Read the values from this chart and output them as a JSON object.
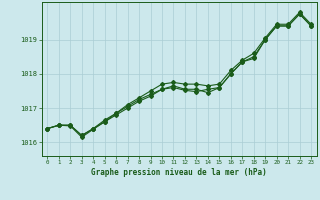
{
  "xlabel": "Graphe pression niveau de la mer (hPa)",
  "background_color": "#cce8ec",
  "grid_color": "#aacdd4",
  "line_color": "#1a5c1a",
  "xlim": [
    -0.5,
    23.5
  ],
  "ylim": [
    1015.6,
    1020.1
  ],
  "yticks": [
    1016,
    1017,
    1018,
    1019
  ],
  "xticks": [
    0,
    1,
    2,
    3,
    4,
    5,
    6,
    7,
    8,
    9,
    10,
    11,
    12,
    13,
    14,
    15,
    16,
    17,
    18,
    19,
    20,
    21,
    22,
    23
  ],
  "series1": [
    1016.4,
    1016.5,
    1016.5,
    1016.2,
    1016.4,
    1016.6,
    1016.8,
    1017.0,
    1017.2,
    1017.35,
    1017.55,
    1017.65,
    1017.55,
    1017.55,
    1017.45,
    1017.6,
    1018.0,
    1018.35,
    1018.45,
    1019.0,
    1019.4,
    1019.4,
    1019.75,
    1019.4
  ],
  "series2": [
    1016.4,
    1016.5,
    1016.5,
    1016.2,
    1016.4,
    1016.65,
    1016.85,
    1017.05,
    1017.25,
    1017.4,
    1017.55,
    1017.6,
    1017.52,
    1017.48,
    1017.55,
    1017.6,
    1018.0,
    1018.35,
    1018.5,
    1019.0,
    1019.4,
    1019.4,
    1019.75,
    1019.4
  ],
  "series3": [
    1016.4,
    1016.5,
    1016.48,
    1016.15,
    1016.38,
    1016.6,
    1016.85,
    1017.1,
    1017.3,
    1017.5,
    1017.7,
    1017.75,
    1017.7,
    1017.7,
    1017.65,
    1017.7,
    1018.1,
    1018.4,
    1018.6,
    1019.05,
    1019.45,
    1019.45,
    1019.8,
    1019.45
  ]
}
